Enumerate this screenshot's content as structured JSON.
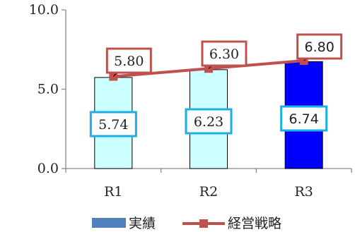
{
  "chart_data": {
    "type": "bar",
    "categories": [
      "R1",
      "R2",
      "R3"
    ],
    "series": [
      {
        "name": "実績",
        "kind": "bar",
        "values": [
          5.74,
          6.23,
          6.74
        ],
        "labels": [
          "5.74",
          "6.23",
          "6.74"
        ],
        "bar_colors": [
          "#ccffff",
          "#ccffff",
          "#0000ff"
        ],
        "label_border_color": "#1ab0e6"
      },
      {
        "name": "経営戦略",
        "kind": "line",
        "values": [
          5.8,
          6.3,
          6.8
        ],
        "labels": [
          "5.80",
          "6.30",
          "6.80"
        ],
        "color": "#c0504d"
      }
    ],
    "yticks": [
      "0.0",
      "5.0",
      "10.0"
    ],
    "ylim": [
      0,
      10
    ],
    "legend": {
      "position": "bottom",
      "bar_swatch_color": "#4f81bd"
    },
    "grid": false
  }
}
